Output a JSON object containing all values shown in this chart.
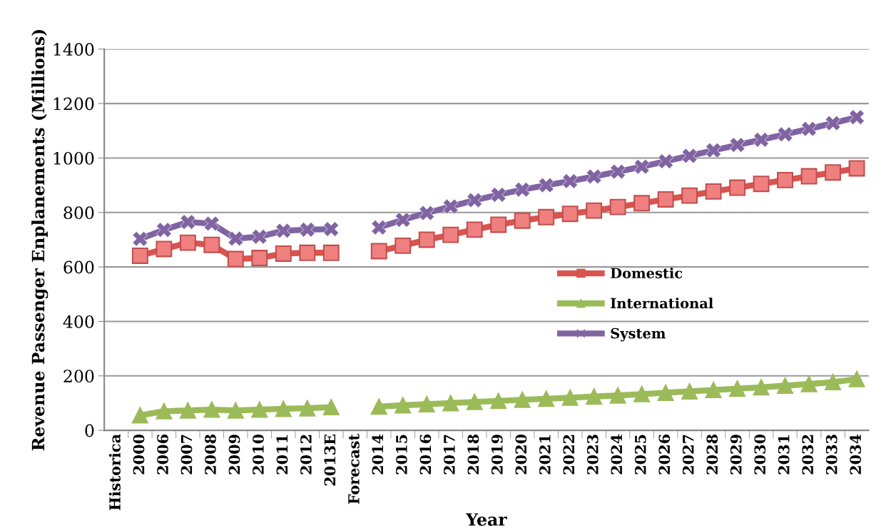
{
  "chart_data": {
    "type": "line",
    "xlabel": "Year",
    "ylabel": "Revenue Passenger Enplanements (Millions)",
    "categories": [
      "Historica",
      "2000",
      "2006",
      "2007",
      "2008",
      "2009",
      "2010",
      "2011",
      "2012",
      "2013E",
      "Forecast",
      "2014",
      "2015",
      "2016",
      "2017",
      "2018",
      "2019",
      "2020",
      "2021",
      "2022",
      "2023",
      "2024",
      "2025",
      "2026",
      "2027",
      "2028",
      "2029",
      "2030",
      "2031",
      "2032",
      "2033",
      "2034"
    ],
    "series": [
      {
        "name": "Domestic",
        "color": "#d9534f",
        "marker": "square",
        "values": [
          null,
          641,
          666,
          689,
          681,
          629,
          633,
          649,
          652,
          652,
          null,
          658,
          678,
          700,
          718,
          737,
          755,
          770,
          783,
          795,
          807,
          820,
          834,
          848,
          862,
          877,
          891,
          905,
          919,
          933,
          947,
          962
        ]
      },
      {
        "name": "International",
        "color": "#9bbb59",
        "marker": "triangle",
        "values": [
          null,
          55,
          70,
          73,
          76,
          73,
          76,
          79,
          81,
          85,
          null,
          87,
          92,
          96,
          100,
          104,
          108,
          112,
          116,
          120,
          124,
          128,
          133,
          138,
          143,
          148,
          153,
          158,
          164,
          170,
          177,
          188
        ]
      },
      {
        "name": "System",
        "color": "#8064a2",
        "marker": "cross",
        "values": [
          null,
          703,
          736,
          765,
          759,
          704,
          711,
          733,
          737,
          739,
          null,
          745,
          773,
          798,
          822,
          845,
          865,
          884,
          900,
          915,
          932,
          950,
          968,
          988,
          1008,
          1028,
          1048,
          1067,
          1087,
          1107,
          1128,
          1150
        ]
      }
    ],
    "ylim": [
      0,
      1400
    ],
    "yticks": [
      0,
      200,
      400,
      600,
      800,
      1000,
      1200,
      1400
    ],
    "grid": "y",
    "legend": "center",
    "line_style": "solid"
  }
}
